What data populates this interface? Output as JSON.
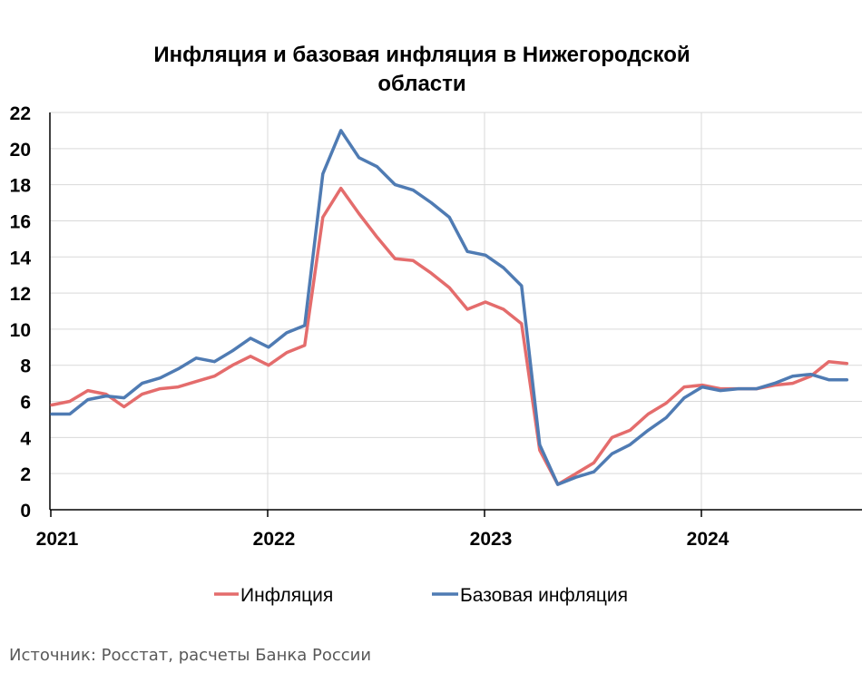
{
  "chart_data": {
    "type": "line",
    "title_line1": "Инфляция и базовая инфляция в Нижегородской",
    "title_line2": "области",
    "xlabel": "",
    "ylabel": "",
    "ylim": [
      0,
      22
    ],
    "y_ticks": [
      "0",
      "2",
      "4",
      "6",
      "8",
      "10",
      "12",
      "14",
      "16",
      "18",
      "20",
      "22"
    ],
    "x_ticks": [
      "2021",
      "2022",
      "2023",
      "2024"
    ],
    "x_tick_months": [
      0,
      12,
      24,
      36
    ],
    "x_range_months": [
      0,
      45
    ],
    "grid": true,
    "legend_position": "bottom",
    "series": [
      {
        "name": "Инфляция",
        "color": "#e46c6c",
        "values": [
          5.8,
          6.0,
          6.6,
          6.4,
          5.7,
          6.4,
          6.7,
          6.8,
          7.1,
          7.4,
          8.0,
          8.5,
          8.0,
          8.7,
          9.1,
          16.2,
          17.8,
          16.4,
          15.1,
          13.9,
          13.8,
          13.1,
          12.3,
          11.1,
          11.5,
          11.1,
          10.3,
          3.3,
          1.4,
          2.0,
          2.6,
          4.0,
          4.4,
          5.3,
          5.9,
          6.8,
          6.9,
          6.7,
          6.7,
          6.7,
          6.9,
          7.0,
          7.4,
          8.2,
          8.1
        ]
      },
      {
        "name": "Базовая инфляция",
        "color": "#4f7bb3",
        "values": [
          5.3,
          5.3,
          6.1,
          6.3,
          6.2,
          7.0,
          7.3,
          7.8,
          8.4,
          8.2,
          8.8,
          9.5,
          9.0,
          9.8,
          10.2,
          18.6,
          21.0,
          19.5,
          19.0,
          18.0,
          17.7,
          17.0,
          16.2,
          14.3,
          14.1,
          13.4,
          12.4,
          3.6,
          1.4,
          1.8,
          2.1,
          3.1,
          3.6,
          4.4,
          5.1,
          6.2,
          6.8,
          6.6,
          6.7,
          6.7,
          7.0,
          7.4,
          7.5,
          7.2,
          7.2
        ]
      }
    ]
  },
  "source": "Источник: Росстат, расчеты Банка России"
}
